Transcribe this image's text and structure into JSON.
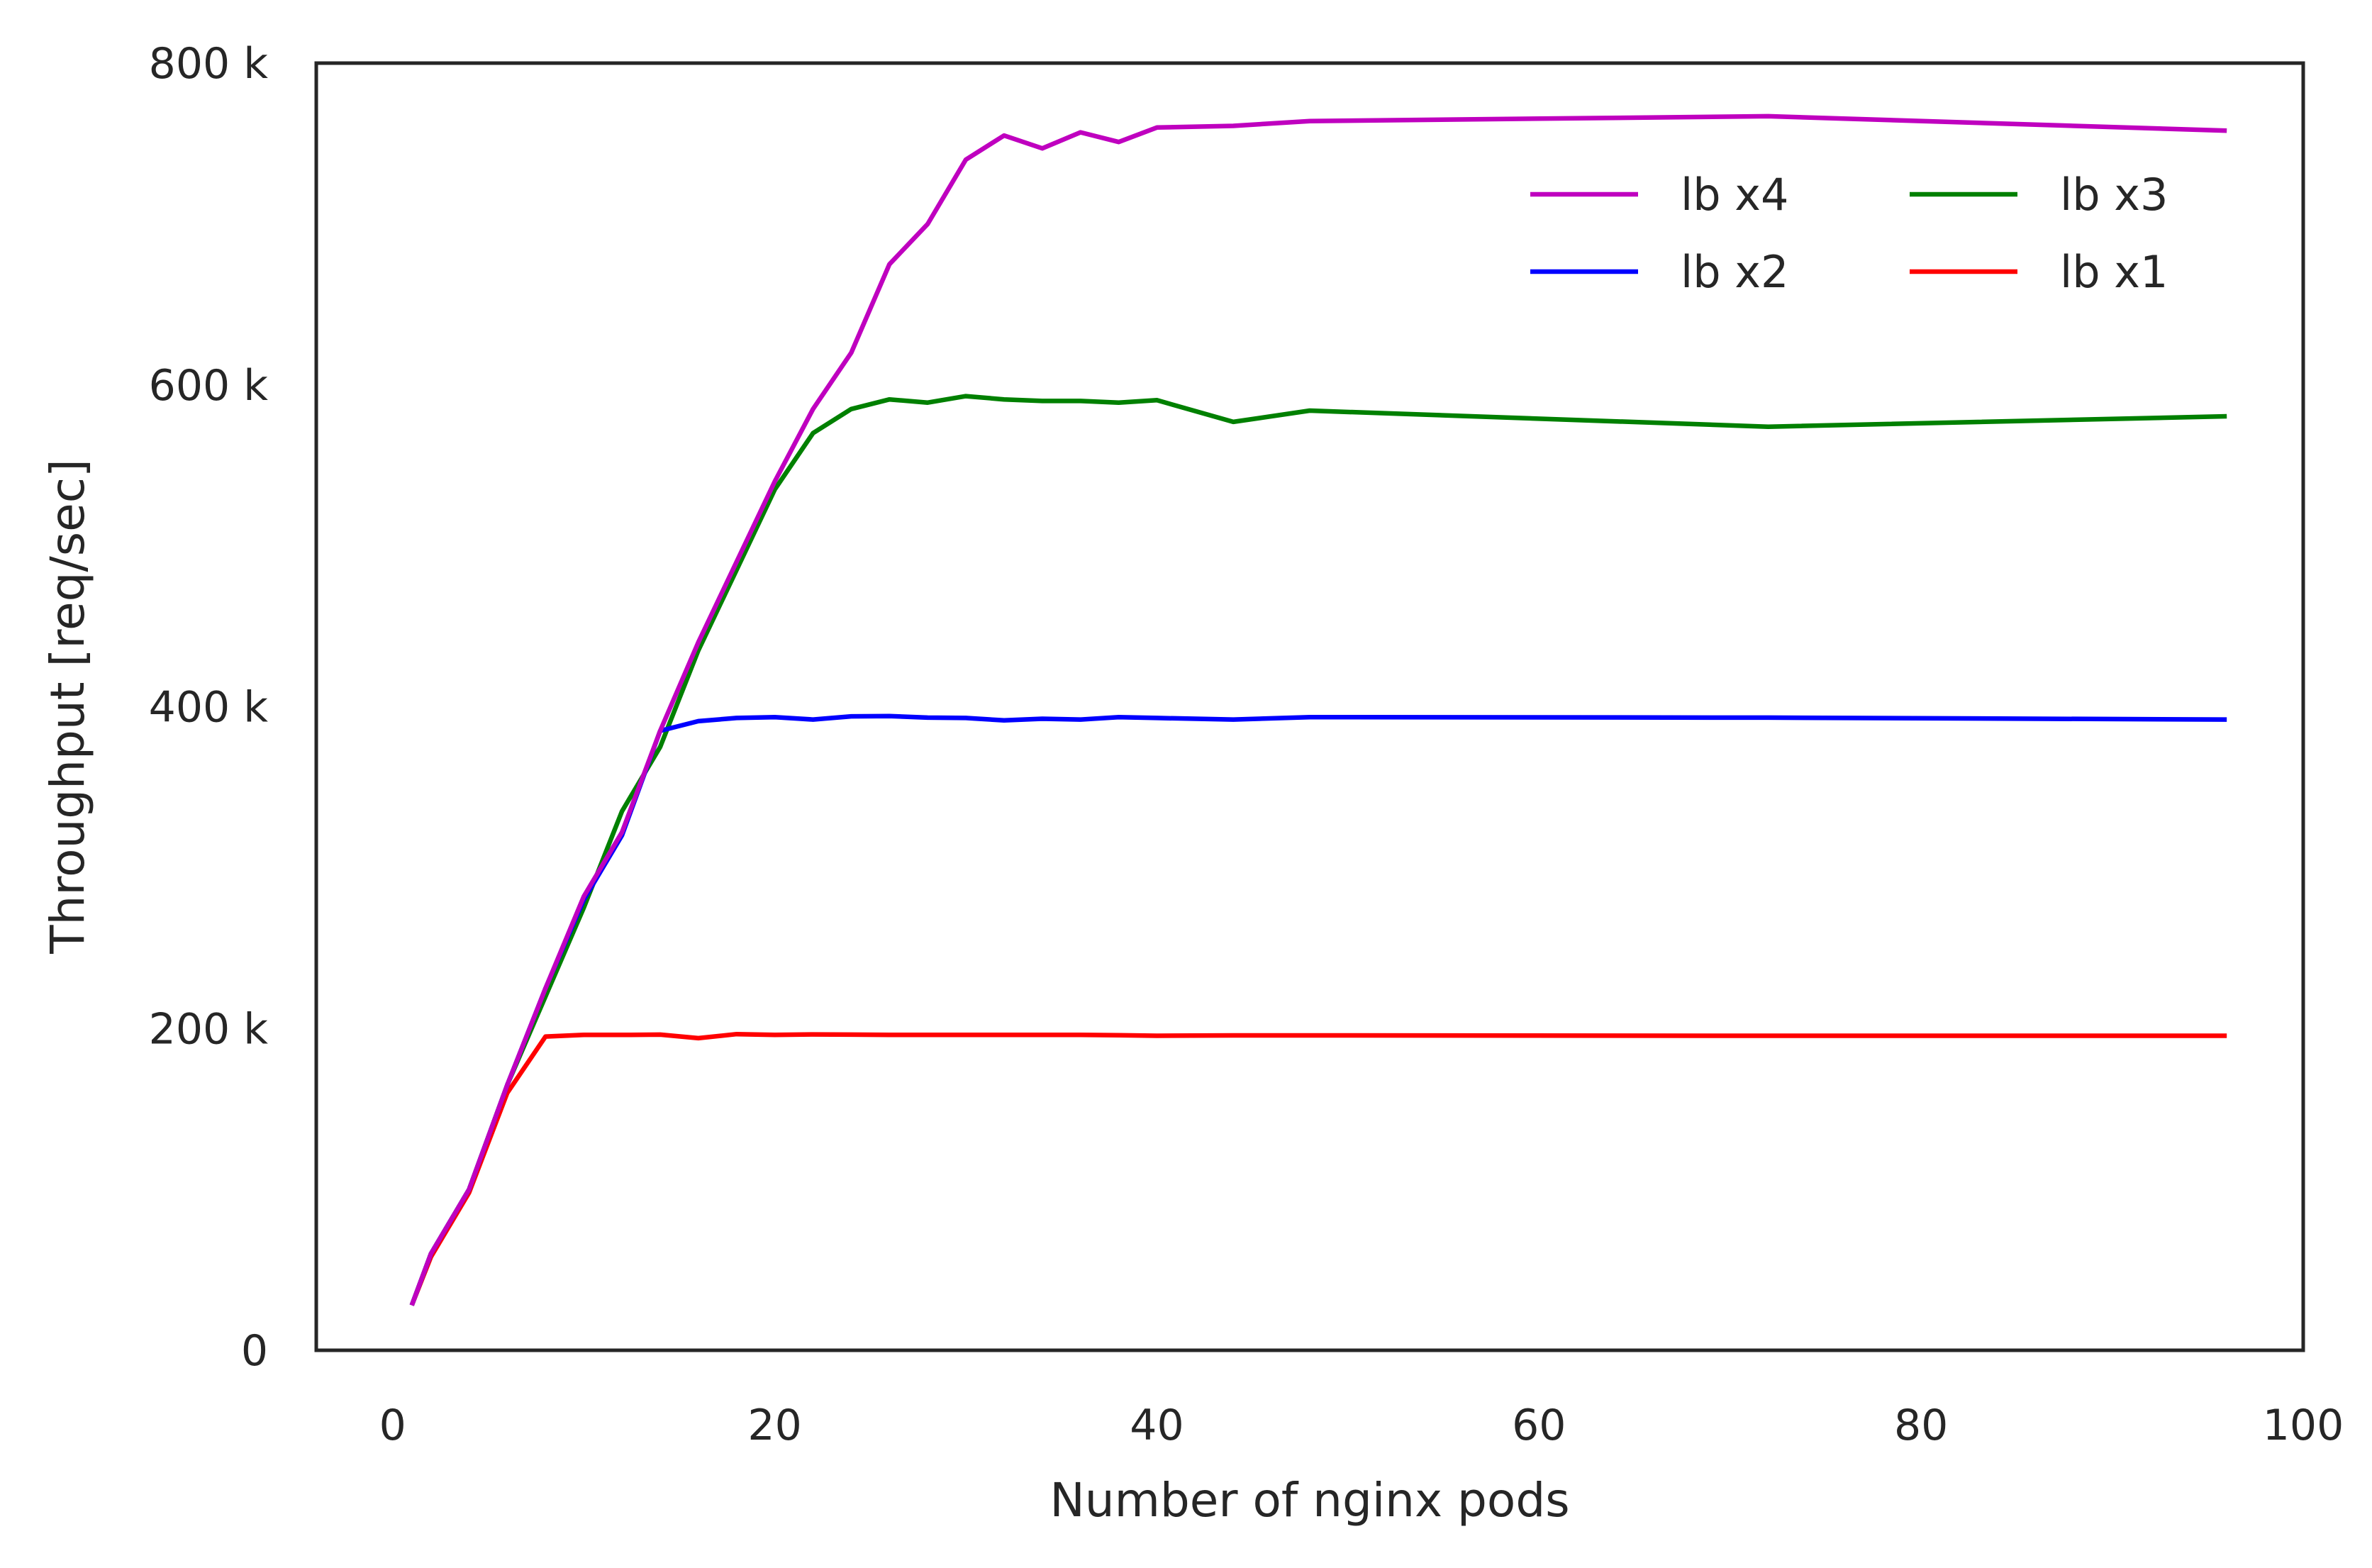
{
  "chart_data": {
    "type": "line",
    "xlabel": "Number of nginx pods",
    "ylabel": "Throughput [req/sec]",
    "xlim": [
      -4,
      100
    ],
    "ylim": [
      0,
      800000
    ],
    "x_ticks": [
      0,
      20,
      40,
      60,
      80,
      100
    ],
    "x_tick_labels": [
      "0",
      "20",
      "40",
      "60",
      "80",
      "100"
    ],
    "y_ticks": [
      0,
      200000,
      400000,
      600000,
      800000
    ],
    "y_tick_labels": [
      "0",
      "200 k",
      "400 k",
      "600 k",
      "800 k"
    ],
    "grid": false,
    "legend": {
      "position": "top-right",
      "columns": 2
    },
    "series": [
      {
        "name": "lb x4",
        "color": "#bf00bf",
        "x": [
          1,
          2,
          4,
          6,
          8,
          10,
          12,
          14,
          16,
          18,
          20,
          22,
          24,
          26,
          28,
          30,
          32,
          34,
          36,
          38,
          40,
          44,
          48,
          72,
          96
        ],
        "y": [
          28000,
          60000,
          100000,
          165000,
          225000,
          282000,
          322000,
          385000,
          440000,
          490000,
          540000,
          585000,
          620000,
          675000,
          700000,
          740000,
          755000,
          747000,
          757000,
          751000,
          760000,
          761000,
          764000,
          767000,
          758000
        ]
      },
      {
        "name": "lb x2",
        "color": "#0000ff",
        "x": [
          1,
          2,
          4,
          6,
          8,
          10,
          12,
          14,
          16,
          18,
          20,
          22,
          24,
          26,
          28,
          30,
          32,
          34,
          36,
          38,
          40,
          44,
          48,
          72,
          96
        ],
        "y": [
          28000,
          60000,
          100000,
          165000,
          225000,
          280000,
          320000,
          385000,
          391000,
          393000,
          393500,
          392000,
          394000,
          394200,
          393200,
          393000,
          391500,
          392500,
          392000,
          393500,
          393000,
          392000,
          393500,
          393200,
          392000
        ]
      },
      {
        "name": "lb x3",
        "color": "#008000",
        "x": [
          1,
          2,
          4,
          6,
          8,
          10,
          12,
          14,
          16,
          18,
          20,
          22,
          24,
          26,
          28,
          30,
          32,
          34,
          36,
          38,
          40,
          44,
          48,
          72,
          96
        ],
        "y": [
          28000,
          60000,
          100000,
          165000,
          220000,
          275000,
          335000,
          375000,
          435000,
          485000,
          535000,
          570000,
          585000,
          591000,
          589000,
          593000,
          591000,
          590000,
          590000,
          589000,
          590500,
          577000,
          584000,
          574000,
          580500
        ]
      },
      {
        "name": "lb x1",
        "color": "#ff0000",
        "x": [
          1,
          2,
          4,
          6,
          8,
          10,
          12,
          14,
          16,
          18,
          20,
          22,
          24,
          26,
          28,
          30,
          32,
          34,
          36,
          38,
          40,
          44,
          48,
          72,
          96
        ],
        "y": [
          28000,
          58000,
          98000,
          160000,
          195000,
          196000,
          196000,
          196200,
          194000,
          196500,
          196000,
          196300,
          196200,
          196000,
          196000,
          196000,
          196000,
          196000,
          196000,
          195800,
          195500,
          195700,
          195700,
          195500,
          195500
        ]
      }
    ]
  }
}
